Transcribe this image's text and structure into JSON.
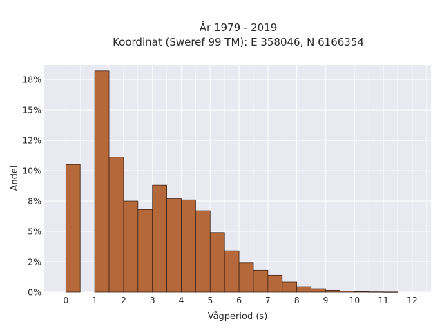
{
  "chart_data": {
    "type": "bar",
    "title_line1": "År 1979 - 2019",
    "title_line2": "Koordinat (Sweref 99 TM): E 358046, N 6166354",
    "xlabel": "Vågperiod (s)",
    "ylabel": "Andel",
    "bin_width": 0.5,
    "bins": [
      {
        "x": 0.0,
        "value": 10.5
      },
      {
        "x": 0.5,
        "value": 0.0
      },
      {
        "x": 1.0,
        "value": 18.2
      },
      {
        "x": 1.5,
        "value": 11.1
      },
      {
        "x": 2.0,
        "value": 7.5
      },
      {
        "x": 2.5,
        "value": 6.8
      },
      {
        "x": 3.0,
        "value": 8.8
      },
      {
        "x": 3.5,
        "value": 7.7
      },
      {
        "x": 4.0,
        "value": 7.6
      },
      {
        "x": 4.5,
        "value": 6.7
      },
      {
        "x": 5.0,
        "value": 4.9
      },
      {
        "x": 5.5,
        "value": 3.4
      },
      {
        "x": 6.0,
        "value": 2.4
      },
      {
        "x": 6.5,
        "value": 1.8
      },
      {
        "x": 7.0,
        "value": 1.4
      },
      {
        "x": 7.5,
        "value": 0.85
      },
      {
        "x": 8.0,
        "value": 0.45
      },
      {
        "x": 8.5,
        "value": 0.28
      },
      {
        "x": 9.0,
        "value": 0.15
      },
      {
        "x": 9.5,
        "value": 0.08
      },
      {
        "x": 10.0,
        "value": 0.04
      },
      {
        "x": 10.5,
        "value": 0.02
      },
      {
        "x": 11.0,
        "value": 0.01
      }
    ],
    "xlim": [
      -0.75,
      12.65
    ],
    "ylim": [
      0,
      18.7
    ],
    "x_ticks": [
      {
        "value": 0,
        "label": "0"
      },
      {
        "value": 1,
        "label": "1"
      },
      {
        "value": 2,
        "label": "2"
      },
      {
        "value": 3,
        "label": "3"
      },
      {
        "value": 4,
        "label": "4"
      },
      {
        "value": 5,
        "label": "5"
      },
      {
        "value": 6,
        "label": "6"
      },
      {
        "value": 7,
        "label": "7"
      },
      {
        "value": 8,
        "label": "8"
      },
      {
        "value": 9,
        "label": "9"
      },
      {
        "value": 10,
        "label": "10"
      },
      {
        "value": 11,
        "label": "11"
      },
      {
        "value": 12,
        "label": "12"
      }
    ],
    "y_ticks": [
      {
        "value": 0,
        "label": "0%"
      },
      {
        "value": 2.5,
        "label": "2%"
      },
      {
        "value": 5,
        "label": "5%"
      },
      {
        "value": 7.5,
        "label": "8%"
      },
      {
        "value": 10,
        "label": "10%"
      },
      {
        "value": 12.5,
        "label": "12%"
      },
      {
        "value": 15,
        "label": "15%"
      },
      {
        "value": 17.5,
        "label": "18%"
      }
    ],
    "grid": true,
    "bar_color": "#b5683a",
    "bar_edge_color": "#3d2417",
    "plot_background": "#e9e9f2",
    "grid_color": "#ffffff"
  }
}
